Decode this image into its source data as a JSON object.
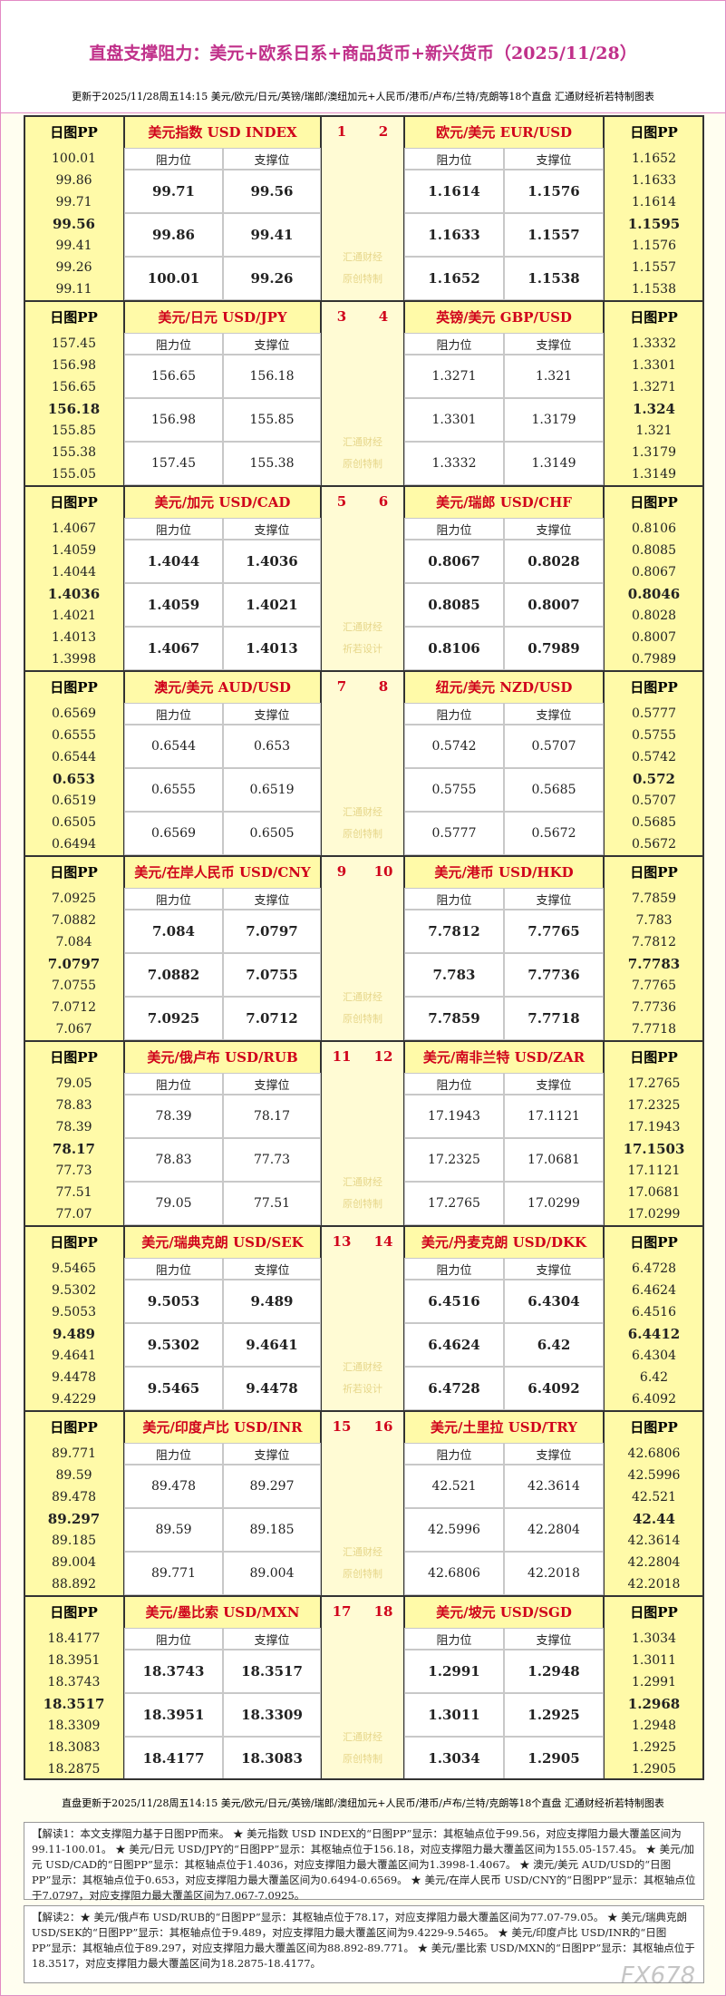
{
  "header": {
    "title": "直盘支撑阻力：美元+欧系日系+商品货币+新兴货币（2025/11/28）",
    "subtitle": "更新于2025/11/28周五14:15 美元/欧元/日元/英镑/瑞郎/澳纽加元+人民币/港币/卢布/兰特/克朗等18个直盘 汇通财经祈若特制图表"
  },
  "labels": {
    "pp": "日图PP",
    "resistance": "阻力位",
    "support": "支撑位"
  },
  "blocks": [
    {
      "numbers": [
        "1",
        "2"
      ],
      "watermark": [
        "汇通财经",
        "原创特制"
      ],
      "left": {
        "name": "美元指数 USD INDEX",
        "pp": [
          "100.01",
          "99.86",
          "99.71",
          "99.56",
          "99.41",
          "99.26",
          "99.11"
        ],
        "resistance": [
          "99.71",
          "99.86",
          "100.01"
        ],
        "support": [
          "99.56",
          "99.41",
          "99.26"
        ]
      },
      "right": {
        "name": "欧元/美元 EUR/USD",
        "pp": [
          "1.1652",
          "1.1633",
          "1.1614",
          "1.1595",
          "1.1576",
          "1.1557",
          "1.1538"
        ],
        "resistance": [
          "1.1614",
          "1.1633",
          "1.1652"
        ],
        "support": [
          "1.1576",
          "1.1557",
          "1.1538"
        ]
      }
    },
    {
      "numbers": [
        "3",
        "4"
      ],
      "watermark": [
        "汇通财经",
        "原创特制"
      ],
      "left": {
        "name": "美元/日元 USD/JPY",
        "pp": [
          "157.45",
          "156.98",
          "156.65",
          "156.18",
          "155.85",
          "155.38",
          "155.05"
        ],
        "resistance": [
          "156.65",
          "156.98",
          "157.45"
        ],
        "support": [
          "156.18",
          "155.85",
          "155.38"
        ]
      },
      "right": {
        "name": "英镑/美元 GBP/USD",
        "pp": [
          "1.3332",
          "1.3301",
          "1.3271",
          "1.324",
          "1.321",
          "1.3179",
          "1.3149"
        ],
        "resistance": [
          "1.3271",
          "1.3301",
          "1.3332"
        ],
        "support": [
          "1.321",
          "1.3179",
          "1.3149"
        ]
      }
    },
    {
      "numbers": [
        "5",
        "6"
      ],
      "watermark": [
        "汇通财经",
        "祈若设计"
      ],
      "left": {
        "name": "美元/加元 USD/CAD",
        "pp": [
          "1.4067",
          "1.4059",
          "1.4044",
          "1.4036",
          "1.4021",
          "1.4013",
          "1.3998"
        ],
        "resistance": [
          "1.4044",
          "1.4059",
          "1.4067"
        ],
        "support": [
          "1.4036",
          "1.4021",
          "1.4013"
        ]
      },
      "right": {
        "name": "美元/瑞郎 USD/CHF",
        "pp": [
          "0.8106",
          "0.8085",
          "0.8067",
          "0.8046",
          "0.8028",
          "0.8007",
          "0.7989"
        ],
        "resistance": [
          "0.8067",
          "0.8085",
          "0.8106"
        ],
        "support": [
          "0.8028",
          "0.8007",
          "0.7989"
        ]
      }
    },
    {
      "numbers": [
        "7",
        "8"
      ],
      "watermark": [
        "汇通财经",
        "原创特制"
      ],
      "left": {
        "name": "澳元/美元 AUD/USD",
        "pp": [
          "0.6569",
          "0.6555",
          "0.6544",
          "0.653",
          "0.6519",
          "0.6505",
          "0.6494"
        ],
        "resistance": [
          "0.6544",
          "0.6555",
          "0.6569"
        ],
        "support": [
          "0.653",
          "0.6519",
          "0.6505"
        ]
      },
      "right": {
        "name": "纽元/美元 NZD/USD",
        "pp": [
          "0.5777",
          "0.5755",
          "0.5742",
          "0.572",
          "0.5707",
          "0.5685",
          "0.5672"
        ],
        "resistance": [
          "0.5742",
          "0.5755",
          "0.5777"
        ],
        "support": [
          "0.5707",
          "0.5685",
          "0.5672"
        ]
      }
    },
    {
      "numbers": [
        "9",
        "10"
      ],
      "watermark": [
        "汇通财经",
        "原创特制"
      ],
      "left": {
        "name": "美元/在岸人民币 USD/CNY",
        "pp": [
          "7.0925",
          "7.0882",
          "7.084",
          "7.0797",
          "7.0755",
          "7.0712",
          "7.067"
        ],
        "resistance": [
          "7.084",
          "7.0882",
          "7.0925"
        ],
        "support": [
          "7.0797",
          "7.0755",
          "7.0712"
        ]
      },
      "right": {
        "name": "美元/港币 USD/HKD",
        "pp": [
          "7.7859",
          "7.783",
          "7.7812",
          "7.7783",
          "7.7765",
          "7.7736",
          "7.7718"
        ],
        "resistance": [
          "7.7812",
          "7.783",
          "7.7859"
        ],
        "support": [
          "7.7765",
          "7.7736",
          "7.7718"
        ]
      }
    },
    {
      "numbers": [
        "11",
        "12"
      ],
      "watermark": [
        "汇通财经",
        "原创特制"
      ],
      "left": {
        "name": "美元/俄卢布 USD/RUB",
        "pp": [
          "79.05",
          "78.83",
          "78.39",
          "78.17",
          "77.73",
          "77.51",
          "77.07"
        ],
        "resistance": [
          "78.39",
          "78.83",
          "79.05"
        ],
        "support": [
          "78.17",
          "77.73",
          "77.51"
        ]
      },
      "right": {
        "name": "美元/南非兰特 USD/ZAR",
        "pp": [
          "17.2765",
          "17.2325",
          "17.1943",
          "17.1503",
          "17.1121",
          "17.0681",
          "17.0299"
        ],
        "resistance": [
          "17.1943",
          "17.2325",
          "17.2765"
        ],
        "support": [
          "17.1121",
          "17.0681",
          "17.0299"
        ]
      }
    },
    {
      "numbers": [
        "13",
        "14"
      ],
      "watermark": [
        "汇通财经",
        "祈若设计"
      ],
      "left": {
        "name": "美元/瑞典克朗 USD/SEK",
        "pp": [
          "9.5465",
          "9.5302",
          "9.5053",
          "9.489",
          "9.4641",
          "9.4478",
          "9.4229"
        ],
        "resistance": [
          "9.5053",
          "9.5302",
          "9.5465"
        ],
        "support": [
          "9.489",
          "9.4641",
          "9.4478"
        ]
      },
      "right": {
        "name": "美元/丹麦克朗 USD/DKK",
        "pp": [
          "6.4728",
          "6.4624",
          "6.4516",
          "6.4412",
          "6.4304",
          "6.42",
          "6.4092"
        ],
        "resistance": [
          "6.4516",
          "6.4624",
          "6.4728"
        ],
        "support": [
          "6.4304",
          "6.42",
          "6.4092"
        ]
      }
    },
    {
      "numbers": [
        "15",
        "16"
      ],
      "watermark": [
        "汇通财经",
        "原创特制"
      ],
      "left": {
        "name": "美元/印度卢比 USD/INR",
        "pp": [
          "89.771",
          "89.59",
          "89.478",
          "89.297",
          "89.185",
          "89.004",
          "88.892"
        ],
        "resistance": [
          "89.478",
          "89.59",
          "89.771"
        ],
        "support": [
          "89.297",
          "89.185",
          "89.004"
        ]
      },
      "right": {
        "name": "美元/土里拉 USD/TRY",
        "pp": [
          "42.6806",
          "42.5996",
          "42.521",
          "42.44",
          "42.3614",
          "42.2804",
          "42.2018"
        ],
        "resistance": [
          "42.521",
          "42.5996",
          "42.6806"
        ],
        "support": [
          "42.3614",
          "42.2804",
          "42.2018"
        ]
      }
    },
    {
      "numbers": [
        "17",
        "18"
      ],
      "watermark": [
        "汇通财经",
        "原创特制"
      ],
      "left": {
        "name": "美元/墨比索 USD/MXN",
        "pp": [
          "18.4177",
          "18.3951",
          "18.3743",
          "18.3517",
          "18.3309",
          "18.3083",
          "18.2875"
        ],
        "resistance": [
          "18.3743",
          "18.3951",
          "18.4177"
        ],
        "support": [
          "18.3517",
          "18.3309",
          "18.3083"
        ]
      },
      "right": {
        "name": "美元/坡元 USD/SGD",
        "pp": [
          "1.3034",
          "1.3011",
          "1.2991",
          "1.2968",
          "1.2948",
          "1.2925",
          "1.2905"
        ],
        "resistance": [
          "1.2991",
          "1.3011",
          "1.3034"
        ],
        "support": [
          "1.2948",
          "1.2925",
          "1.2905"
        ]
      }
    }
  ],
  "footer": {
    "update": "直盘更新于2025/11/28周五14:15 美元/欧元/日元/英镑/瑞郎/澳纽加元+人民币/港币/卢布/兰特/克朗等18个直盘 汇通财经祈若特制图表",
    "notes": [
      "【解读1：本文支撑阻力基于日图PP而来。 ★ 美元指数 USD INDEX的“日图PP”显示：其枢轴点位于99.56，对应支撑阻力最大覆盖区间为99.11-100.01。 ★ 美元/日元 USD/JPY的“日图PP”显示：其枢轴点位于156.18，对应支撑阻力最大覆盖区间为155.05-157.45。 ★ 美元/加元 USD/CAD的“日图PP”显示：其枢轴点位于1.4036，对应支撑阻力最大覆盖区间为1.3998-1.4067。 ★ 澳元/美元 AUD/USD的“日图PP”显示：其枢轴点位于0.653，对应支撑阻力最大覆盖区间为0.6494-0.6569。 ★ 美元/在岸人民币 USD/CNY的“日图PP”显示：其枢轴点位于7.0797，对应支撑阻力最大覆盖区间为7.067-7.0925。",
      "【解读2：★ 美元/俄卢布 USD/RUB的“日图PP”显示：其枢轴点位于78.17，对应支撑阻力最大覆盖区间为77.07-79.05。 ★ 美元/瑞典克朗 USD/SEK的“日图PP”显示：其枢轴点位于9.489，对应支撑阻力最大覆盖区间为9.4229-9.5465。 ★ 美元/印度卢比 USD/INR的“日图PP”显示：其枢轴点位于89.297，对应支撑阻力最大覆盖区间为88.892-89.771。 ★ 美元/墨比索 USD/MXN的“日图PP”显示：其枢轴点位于18.3517，对应支撑阻力最大覆盖区间为18.2875-18.4177。"
    ]
  },
  "watermark": "FX678"
}
